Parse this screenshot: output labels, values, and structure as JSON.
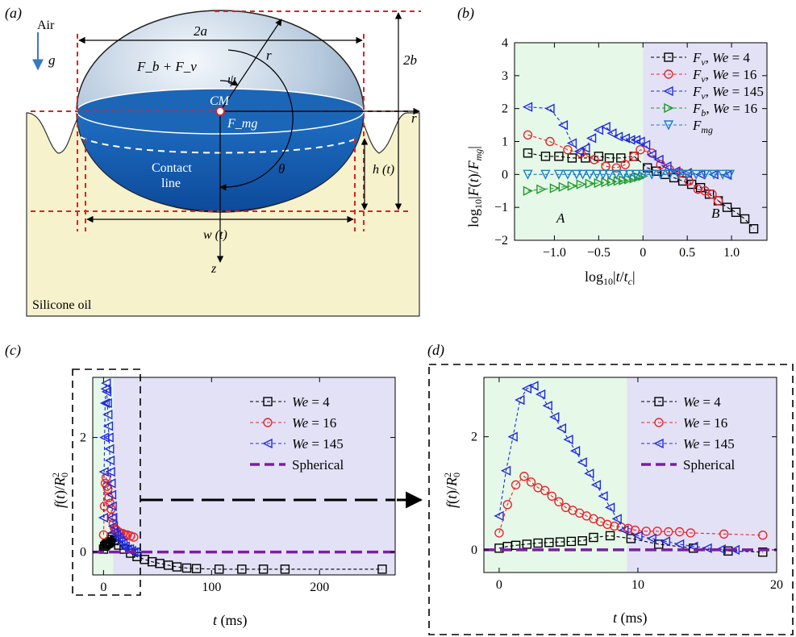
{
  "panels": {
    "a": {
      "label": "(a)",
      "air": "Air",
      "g": "g",
      "two_a": "2a",
      "two_b": "2b",
      "forces": "F_b + F_v",
      "psi": "ψ",
      "r": "r",
      "cm": "CM",
      "fmg": "F_mg",
      "contact_line": [
        "Contact",
        "line"
      ],
      "theta": "θ",
      "h_t": "h (t)",
      "w_t": "w (t)",
      "z": "z",
      "silicone_oil": "Silicone oil"
    }
  },
  "chart_data": [
    {
      "panel": "(b)",
      "type": "line",
      "xlabel": "log10|t/tc|",
      "ylabel": "log10|F(t)/Fmg|",
      "xlim": [
        -1.45,
        1.4
      ],
      "ylim": [
        -2,
        4
      ],
      "xticks": [
        "−1.0",
        "−0.5",
        "0",
        "0.5",
        "1.0"
      ],
      "yticks": [
        "−2",
        "−1",
        "0",
        "1",
        "2",
        "3",
        "4"
      ],
      "regions": [
        {
          "label": "A",
          "from": -1.45,
          "to": 0,
          "color": "#e6f8e8"
        },
        {
          "label": "B",
          "from": 0,
          "to": 1.4,
          "color": "#e3e1f6"
        }
      ],
      "legend_position": "top-right",
      "series": [
        {
          "name": "F_v, We = 4",
          "marker": "square",
          "color": "#000000",
          "x": [
            -1.3,
            -1.1,
            -0.95,
            -0.8,
            -0.65,
            -0.5,
            -0.38,
            -0.25,
            -0.1,
            0.05,
            0.15,
            0.25,
            0.35,
            0.45,
            0.55,
            0.65,
            0.75,
            0.85,
            0.95,
            1.05,
            1.15,
            1.25
          ],
          "y": [
            0.65,
            0.55,
            0.55,
            0.5,
            0.5,
            0.55,
            0.5,
            0.5,
            0.55,
            0.2,
            0.1,
            0.0,
            -0.1,
            -0.2,
            -0.3,
            -0.4,
            -0.6,
            -0.8,
            -1.0,
            -1.15,
            -1.35,
            -1.65
          ]
        },
        {
          "name": "F_v, We = 16",
          "marker": "circle",
          "color": "#e8262d",
          "x": [
            -1.3,
            -1.05,
            -0.85,
            -0.7,
            -0.55,
            -0.42,
            -0.3,
            -0.2,
            -0.1,
            -0.03,
            0.1,
            0.2,
            0.3,
            0.42,
            0.52,
            0.62,
            0.7,
            0.78,
            0.85
          ],
          "y": [
            1.2,
            1.0,
            0.75,
            0.65,
            0.45,
            0.25,
            0.2,
            0.3,
            0.55,
            0.75,
            0.65,
            0.3,
            0.15,
            0.05,
            -0.2,
            -0.45,
            -0.5,
            -0.6,
            -0.8
          ]
        },
        {
          "name": "F_v, We = 145",
          "marker": "triangle-left",
          "color": "#1f2ae0",
          "x": [
            -1.3,
            -1.05,
            -0.9,
            -0.8,
            -0.72,
            -0.65,
            -0.58,
            -0.5,
            -0.42,
            -0.35,
            -0.28,
            -0.2,
            -0.14,
            -0.08,
            -0.03,
            0.03,
            0.1,
            0.18,
            0.27,
            0.37,
            0.5,
            0.65,
            0.8,
            0.95
          ],
          "y": [
            2.05,
            2.0,
            1.5,
            0.95,
            0.7,
            0.8,
            1.1,
            1.35,
            1.45,
            1.25,
            1.15,
            1.1,
            1.05,
            1.05,
            1.0,
            0.9,
            0.6,
            0.45,
            0.25,
            0.1,
            0.05,
            0.0,
            0.0,
            -0.02
          ]
        },
        {
          "name": "F_b, We = 16",
          "marker": "triangle-right",
          "color": "#1e9a2c",
          "x": [
            -1.3,
            -1.15,
            -1.0,
            -0.9,
            -0.8,
            -0.7,
            -0.6,
            -0.5,
            -0.42,
            -0.35,
            -0.28,
            -0.22,
            -0.16,
            -0.1,
            -0.05,
            0.0
          ],
          "y": [
            -0.5,
            -0.45,
            -0.42,
            -0.38,
            -0.35,
            -0.3,
            -0.28,
            -0.26,
            -0.24,
            -0.22,
            -0.2,
            -0.18,
            -0.15,
            -0.12,
            -0.08,
            -0.05
          ]
        },
        {
          "name": "F_mg",
          "marker": "triangle-down",
          "color": "#1b7fc0",
          "x": [
            -1.3,
            -1.1,
            -0.95,
            -0.85,
            -0.75,
            -0.68,
            -0.6,
            -0.52,
            -0.45,
            -0.38,
            -0.3,
            -0.22,
            -0.15,
            -0.08,
            0.0,
            0.1,
            0.2,
            0.3,
            0.4,
            0.5,
            0.6,
            0.7,
            0.8,
            0.9,
            0.98
          ],
          "y": [
            0,
            0,
            0,
            0,
            0,
            0,
            0,
            0,
            0,
            0,
            0,
            0,
            0,
            0,
            0,
            0,
            0,
            0,
            0,
            0,
            0,
            0,
            0,
            0,
            0
          ]
        }
      ]
    },
    {
      "panel": "(c)",
      "type": "line",
      "xlabel": "t (ms)",
      "ylabel": "f(t)/R0^2",
      "xlim": [
        -10,
        270
      ],
      "ylim": [
        -0.4,
        3.05
      ],
      "xticks": [
        "0",
        "100",
        "200"
      ],
      "yticks": [
        "0",
        "2"
      ],
      "regions": [
        {
          "from": -10,
          "to": 9,
          "color": "#e6f8e8"
        },
        {
          "from": 9,
          "to": 270,
          "color": "#e3e1f6"
        }
      ],
      "legend_position": "top-right",
      "series": [
        {
          "name": "We = 4",
          "marker": "square",
          "color": "#000000",
          "x": [
            0,
            1,
            2,
            3,
            4,
            5,
            6,
            7,
            8,
            10,
            14,
            19,
            25,
            31,
            38,
            45,
            52,
            60,
            68,
            77,
            86,
            107,
            128,
            148,
            168,
            258
          ],
          "y": [
            0.05,
            0.1,
            0.12,
            0.14,
            0.15,
            0.16,
            0.18,
            0.22,
            0.26,
            0.2,
            0.12,
            0.05,
            -0.02,
            -0.08,
            -0.13,
            -0.17,
            -0.2,
            -0.23,
            -0.26,
            -0.28,
            -0.29,
            -0.3,
            -0.3,
            -0.3,
            -0.3,
            -0.3
          ]
        },
        {
          "name": "We = 16",
          "marker": "circle",
          "color": "#e8262d",
          "x": [
            0,
            0.8,
            1.6,
            2.4,
            3.2,
            4,
            5,
            6,
            7,
            8,
            9,
            10,
            11,
            12,
            14,
            16,
            18,
            20,
            22,
            25,
            28
          ],
          "y": [
            0.3,
            0.8,
            1.2,
            1.3,
            1.15,
            1.1,
            0.95,
            0.85,
            0.75,
            0.6,
            0.5,
            0.42,
            0.4,
            0.38,
            0.35,
            0.33,
            0.32,
            0.3,
            0.3,
            0.28,
            0.26
          ]
        },
        {
          "name": "We = 145",
          "marker": "triangle-left",
          "color": "#1f2ae0",
          "x": [
            0,
            0.5,
            1,
            1.5,
            2,
            2.5,
            3,
            3.5,
            4,
            4.5,
            5,
            5.5,
            6,
            6.5,
            7,
            7.5,
            8,
            8.5,
            9,
            10,
            12,
            14,
            16,
            18,
            20,
            22,
            24,
            26,
            28,
            30
          ],
          "y": [
            0.6,
            1.4,
            2.0,
            2.6,
            2.85,
            2.95,
            2.8,
            2.6,
            2.4,
            2.2,
            2.0,
            1.8,
            1.6,
            1.4,
            1.2,
            1.0,
            0.8,
            0.6,
            0.45,
            0.35,
            0.3,
            0.25,
            0.2,
            0.15,
            0.1,
            0.05,
            0.05,
            0.02,
            0.0,
            0.0
          ]
        },
        {
          "name": "Spherical",
          "marker": "none",
          "color": "#7b1fa2",
          "dashed": true,
          "x": [
            -10,
            270
          ],
          "y": [
            0,
            0
          ]
        }
      ]
    },
    {
      "panel": "(d)",
      "type": "line",
      "xlabel": "t (ms)",
      "ylabel": "f(t)/R0^2",
      "xlim": [
        -1.1,
        20
      ],
      "ylim": [
        -0.4,
        3.05
      ],
      "xticks": [
        "0",
        "10",
        "20"
      ],
      "yticks": [
        "0",
        "2"
      ],
      "regions": [
        {
          "from": -1.1,
          "to": 9.2,
          "color": "#e6f8e8"
        },
        {
          "from": 9.2,
          "to": 20,
          "color": "#e3e1f6"
        }
      ],
      "legend_position": "top-right",
      "series": [
        {
          "name": "We = 4",
          "marker": "square",
          "color": "#000000",
          "x": [
            0,
            0.6,
            1.2,
            2,
            2.8,
            3.6,
            4.4,
            5.2,
            6,
            6.8,
            8,
            9.5,
            11.5,
            14,
            16.5,
            19
          ],
          "y": [
            0.03,
            0.06,
            0.08,
            0.1,
            0.12,
            0.13,
            0.14,
            0.15,
            0.16,
            0.22,
            0.25,
            0.2,
            0.1,
            0.03,
            -0.02,
            -0.04
          ]
        },
        {
          "name": "We = 16",
          "marker": "circle",
          "color": "#e8262d",
          "x": [
            0,
            0.6,
            1.2,
            1.8,
            2.3,
            2.8,
            3.3,
            3.8,
            4.3,
            4.8,
            5.3,
            5.8,
            6.3,
            6.8,
            7.3,
            7.8,
            8.3,
            8.8,
            9.3,
            9.8,
            10.6,
            11.4,
            12.2,
            13,
            13.8,
            16.2,
            19
          ],
          "y": [
            0.3,
            0.8,
            1.15,
            1.3,
            1.2,
            1.1,
            1.05,
            0.95,
            0.85,
            0.75,
            0.7,
            0.65,
            0.6,
            0.55,
            0.5,
            0.45,
            0.42,
            0.4,
            0.38,
            0.35,
            0.33,
            0.33,
            0.32,
            0.32,
            0.3,
            0.28,
            0.26
          ]
        },
        {
          "name": "We = 145",
          "marker": "triangle-left",
          "color": "#1f2ae0",
          "x": [
            0,
            0.5,
            1.0,
            1.5,
            2.0,
            2.5,
            3.0,
            3.5,
            4.0,
            4.5,
            5.0,
            5.5,
            6.0,
            6.5,
            7.0,
            7.5,
            8.0,
            8.5,
            9.0,
            10.0,
            11.0,
            12.0,
            13.0,
            14.0,
            15.0,
            16.0,
            17.0
          ],
          "y": [
            0.6,
            1.4,
            2.0,
            2.65,
            2.85,
            2.9,
            2.75,
            2.55,
            2.35,
            2.15,
            1.95,
            1.75,
            1.55,
            1.35,
            1.15,
            0.95,
            0.75,
            0.55,
            0.35,
            0.25,
            0.2,
            0.15,
            0.1,
            0.06,
            0.03,
            0.01,
            0.0
          ]
        },
        {
          "name": "Spherical",
          "marker": "none",
          "color": "#7b1fa2",
          "dashed": true,
          "x": [
            -1.1,
            20
          ],
          "y": [
            0,
            0
          ]
        }
      ]
    }
  ]
}
